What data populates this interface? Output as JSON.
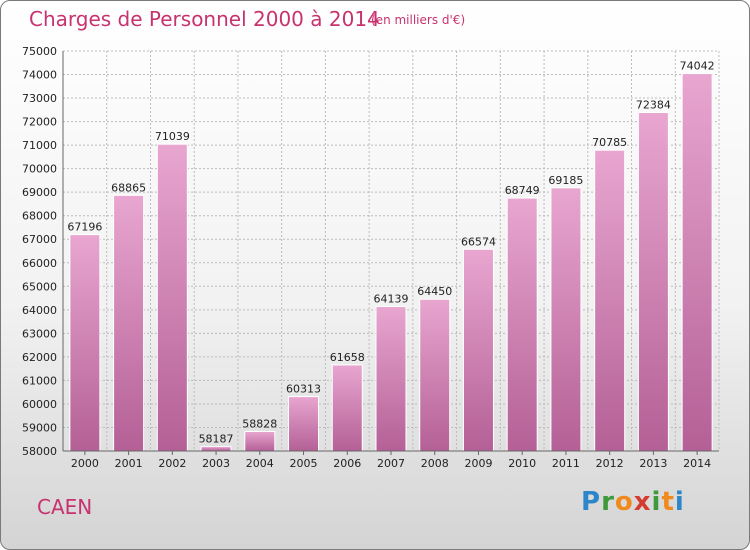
{
  "header": {
    "title": "Charges de Personnel 2000 à 2014",
    "subtitle": "(en milliers d'€)"
  },
  "footer": {
    "city": "CAEN",
    "logo_text": "Proxiti"
  },
  "colors": {
    "title": "#c8326e",
    "bar_light": "#e8a6d0",
    "bar_dark": "#b46096"
  },
  "chart_data": {
    "type": "bar",
    "title": "Charges de Personnel 2000 à 2014",
    "subtitle": "(en milliers d'€)",
    "xlabel": "",
    "ylabel": "",
    "categories": [
      "2000",
      "2001",
      "2002",
      "2003",
      "2004",
      "2005",
      "2006",
      "2007",
      "2008",
      "2009",
      "2010",
      "2011",
      "2012",
      "2013",
      "2014"
    ],
    "values": [
      67196,
      68865,
      71039,
      58187,
      58828,
      60313,
      61658,
      64139,
      64450,
      66574,
      68749,
      69185,
      70785,
      72384,
      74042
    ],
    "ylim": [
      58000,
      75000
    ],
    "yticks": [
      58000,
      59000,
      60000,
      61000,
      62000,
      63000,
      64000,
      65000,
      66000,
      67000,
      68000,
      69000,
      70000,
      71000,
      72000,
      73000,
      74000,
      75000
    ],
    "grid": true,
    "legend": "none"
  }
}
